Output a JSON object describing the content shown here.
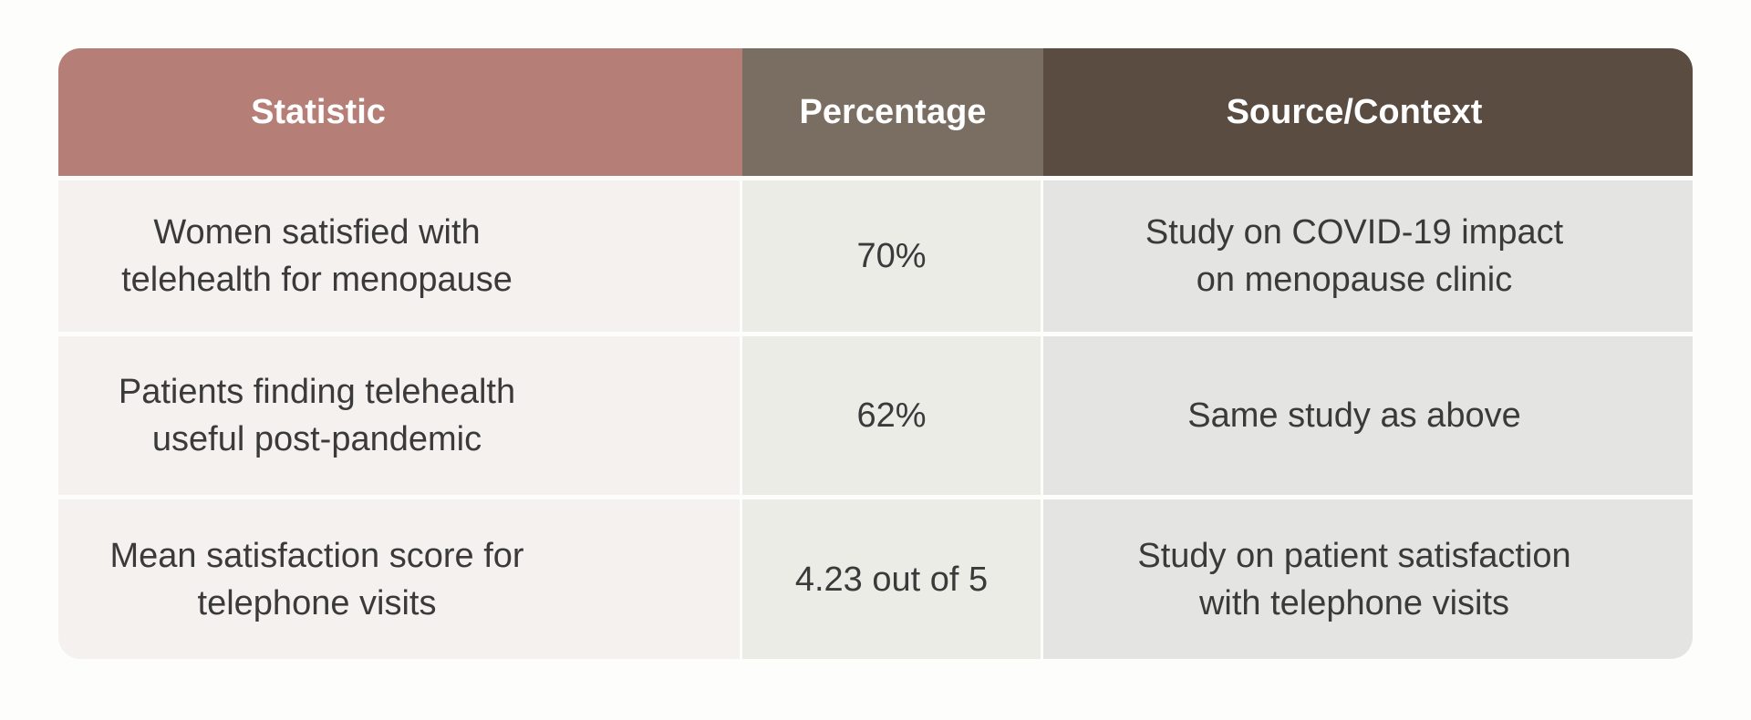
{
  "chart_data": {
    "type": "table",
    "title": "",
    "columns": [
      "Statistic",
      "Percentage",
      "Source/Context"
    ],
    "rows": [
      {
        "statistic": "Women satisfied with\ntelehealth for menopause",
        "percentage": "70%",
        "source_context": "Study on COVID-19 impact\non menopause clinic"
      },
      {
        "statistic": "Patients finding telehealth\nuseful post-pandemic",
        "percentage": "62%",
        "source_context": "Same study as above"
      },
      {
        "statistic": "Mean satisfaction score for\ntelephone visits",
        "percentage": "4.23 out of 5",
        "source_context": "Study on patient satisfaction\nwith telephone visits"
      }
    ]
  },
  "colors": {
    "page_bg": "#fdfdfc",
    "header_statistic_bg": "#b57f77",
    "header_percentage_bg": "#7a6e62",
    "header_source_context_bg": "#5a4c41",
    "header_text": "#ffffff",
    "cell_statistic_bg": "#f5f1ee",
    "cell_percentage_bg": "#ebece6",
    "cell_source_context_bg": "#e4e4e2",
    "body_text": "#3a3a3a"
  }
}
